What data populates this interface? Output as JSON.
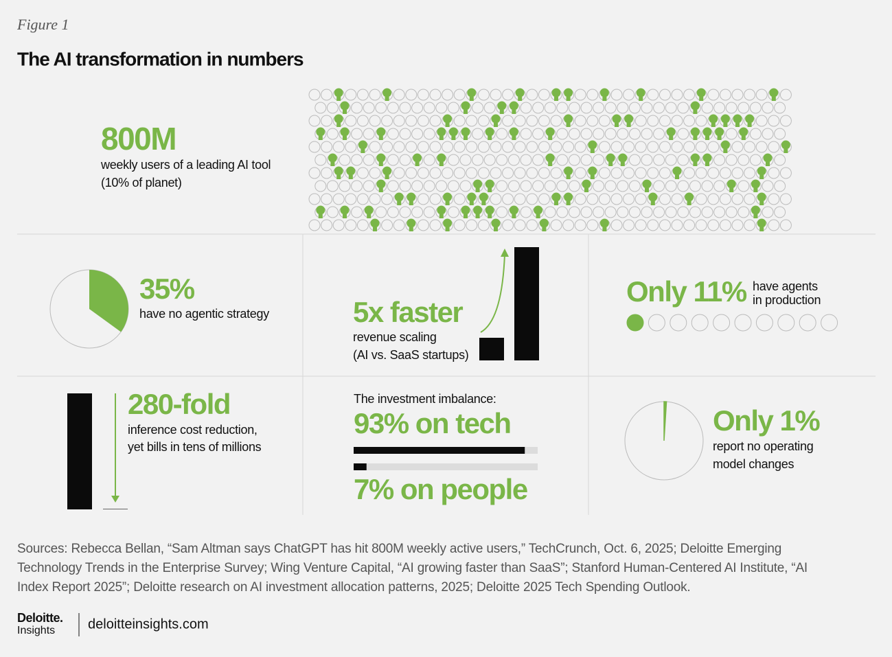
{
  "figure_label": "Figure 1",
  "title": "The AI transformation in numbers",
  "users": {
    "headline": "800M",
    "lines": [
      "weekly users of a leading AI tool",
      "(10% of planet)"
    ]
  },
  "agentic": {
    "share": {
      "value": 35,
      "label": "35%"
    },
    "text": "have no agentic strategy"
  },
  "scaling": {
    "multiple": {
      "value": 5,
      "label": "5x faster"
    },
    "lines": [
      "revenue scaling",
      "(AI vs. SaaS startups)"
    ]
  },
  "agents": {
    "share": {
      "value": 11,
      "label": "Only 11%"
    },
    "lines": [
      "have agents",
      "in production"
    ]
  },
  "inference": {
    "reduction": {
      "value": 280,
      "label": "280-fold"
    },
    "lines": [
      "inference cost reduction,",
      "yet bills in tens of millions"
    ]
  },
  "investment": {
    "heading": "The investment imbalance:",
    "tech": {
      "value": 93,
      "label": "93% on tech"
    },
    "people": {
      "value": 7,
      "label": "7% on people"
    }
  },
  "operating": {
    "share": {
      "value": 1,
      "label": "Only 1%"
    },
    "lines": [
      "report no operating",
      "model changes"
    ]
  },
  "sources": "Sources: Rebecca Bellan, “Sam Altman says ChatGPT has hit 800M weekly active users,” TechCrunch, Oct. 6, 2025; Deloitte Emerging Technology Trends in the Enterprise Survey; Wing Venture Capital, “AI growing faster than SaaS”; Stanford Human-Centered AI Institute, “AI Index Report 2025”; Deloitte research on AI investment allocation patterns, 2025; Deloitte 2025 Tech Spending Outlook.",
  "footer": {
    "brand": "Deloitte.",
    "sub": "Insights",
    "url": "deloitteinsights.com"
  }
}
